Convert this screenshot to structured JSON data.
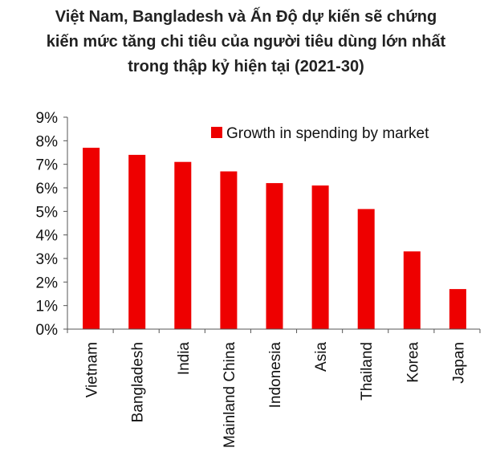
{
  "chart_data": {
    "type": "bar",
    "title_lines": [
      "Việt Nam, Bangladesh và Ấn Độ dự kiến sẽ chứng",
      "kiến mức tăng chi tiêu của người tiêu dùng lớn nhất",
      "trong thập kỷ hiện tại (2021-30)"
    ],
    "categories": [
      "Vietnam",
      "Bangladesh",
      "India",
      "Mainland China",
      "Indonesia",
      "Asia",
      "Thailand",
      "Korea",
      "Japan"
    ],
    "series": [
      {
        "name": "Growth in spending by market",
        "values": [
          7.7,
          7.4,
          7.1,
          6.7,
          6.2,
          6.1,
          5.1,
          3.3,
          1.7
        ],
        "color": "#ee0000"
      }
    ],
    "ylim": [
      0,
      9
    ],
    "yticks": [
      "0%",
      "1%",
      "2%",
      "3%",
      "4%",
      "5%",
      "6%",
      "7%",
      "8%",
      "9%"
    ],
    "unit": "%",
    "grid": false,
    "legend_position": "top-right",
    "xlabel": "",
    "ylabel": ""
  }
}
